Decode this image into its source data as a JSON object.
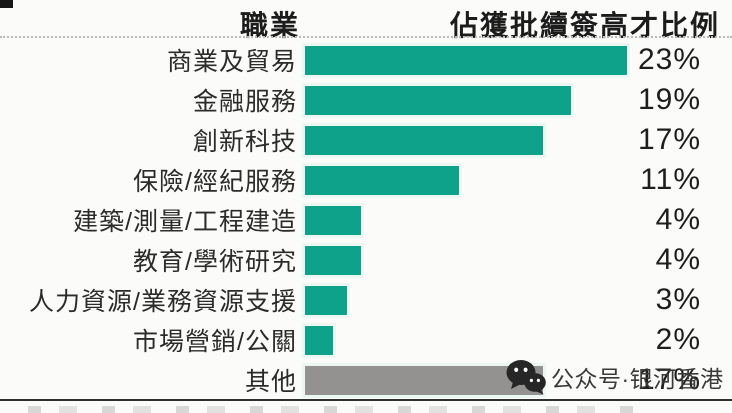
{
  "header": {
    "col1": "職業",
    "col2": "佔獲批續簽高才比例"
  },
  "chart_data": {
    "type": "bar",
    "orientation": "horizontal",
    "title": "",
    "xlabel": "佔獲批續簽高才比例",
    "ylabel": "職業",
    "xlim": [
      0,
      23
    ],
    "grid": false,
    "legend": false,
    "categories": [
      "商業及貿易",
      "金融服務",
      "創新科技",
      "保險/經紀服務",
      "建築/測量/工程建造",
      "教育/學術研究",
      "人力資源/業務資源支援",
      "市場營銷/公關",
      "其他"
    ],
    "values": [
      23,
      19,
      17,
      11,
      4,
      4,
      3,
      2,
      17
    ],
    "value_labels": [
      "23%",
      "19%",
      "17%",
      "11%",
      "4%",
      "4%",
      "3%",
      "2%",
      "17%"
    ],
    "bar_colors": [
      "#0fa28a",
      "#0fa28a",
      "#0fa28a",
      "#0fa28a",
      "#0fa28a",
      "#0fa28a",
      "#0fa28a",
      "#0fa28a",
      "#939291"
    ]
  },
  "watermark": {
    "icon": "wechat-icon",
    "text": "公众号·银河香港"
  },
  "colors": {
    "bar_teal": "#0fa28a",
    "bar_grey": "#939291",
    "text": "#232323",
    "watermark_text": "#3a3a3a",
    "icon_fill": "#262626"
  }
}
